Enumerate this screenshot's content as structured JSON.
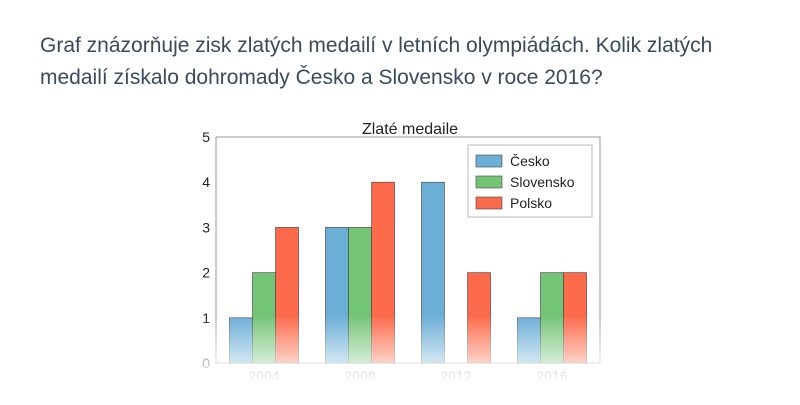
{
  "question": {
    "text": "Graf znázorňuje zisk zlatých medailí v letních olympiádách. Kolik zlatých medailí získalo dohromady Česko a Slovensko v roce 2016?"
  },
  "chart_data": {
    "type": "bar",
    "title": "Zlaté medaile",
    "xlabel": "",
    "ylabel": "",
    "categories": [
      "2004",
      "2008",
      "2012",
      "2016"
    ],
    "series": [
      {
        "name": "Česko",
        "values": [
          1,
          3,
          4,
          1
        ],
        "color": "#6baed6"
      },
      {
        "name": "Slovensko",
        "values": [
          2,
          3,
          0,
          2
        ],
        "color": "#74c476"
      },
      {
        "name": "Polsko",
        "values": [
          3,
          4,
          2,
          2
        ],
        "color": "#fb6a4a"
      }
    ],
    "ylim": [
      0,
      5
    ],
    "yticks": [
      "0",
      "1",
      "2",
      "3",
      "4",
      "5"
    ],
    "grid": false,
    "legend_position": "top-right",
    "bottom_fade": true
  }
}
